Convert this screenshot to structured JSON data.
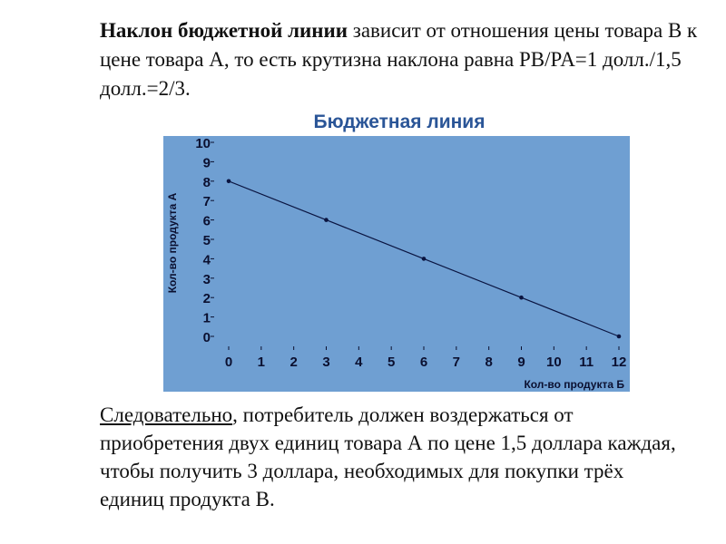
{
  "intro": {
    "bold": "Наклон бюджетной линии",
    "rest": " зависит от отношения цены товара В к цене товара А, то есть крутизна наклона равна PB/PA=1 долл./1,5 долл.=2/3."
  },
  "conclusion": {
    "underlined": "Следовательно",
    "rest": ", потребитель должен воздержаться от приобретения двух единиц товара А по цене 1,5 доллара каждая, чтобы получить 3 доллара, необходимых для покупки трёх единиц продукта В."
  },
  "colors": {
    "plot_background": "#6f9fd2",
    "line": "#0a1440",
    "title": "#2a5597"
  },
  "chart_data": {
    "type": "line",
    "title": "Бюджетная линия",
    "xlabel": "Кол-во продукта Б",
    "ylabel": "Кол-во продукта А",
    "xlim": [
      0,
      12
    ],
    "ylim": [
      0,
      10
    ],
    "x_ticks": [
      0,
      1,
      2,
      3,
      4,
      5,
      6,
      7,
      8,
      9,
      10,
      11,
      12
    ],
    "y_ticks": [
      0,
      1,
      2,
      3,
      4,
      5,
      6,
      7,
      8,
      9,
      10
    ],
    "grid": false,
    "series": [
      {
        "x": [
          0,
          3,
          6,
          9,
          12
        ],
        "y": [
          8,
          6,
          4,
          2,
          0
        ]
      }
    ]
  }
}
